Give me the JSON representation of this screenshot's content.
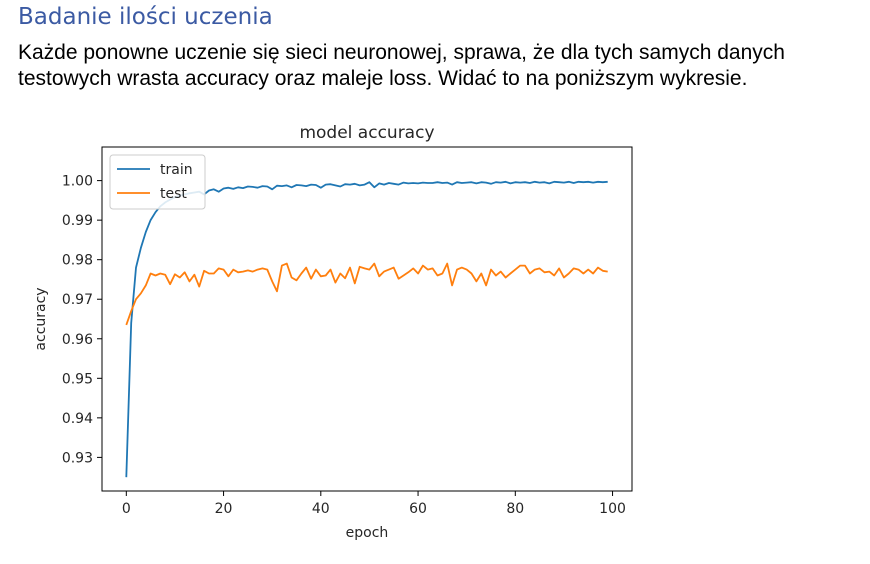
{
  "heading": "Badanie ilości uczenia",
  "paragraph": {
    "line1": "Każde ponowne uczenie się sieci neuronowej, sprawa, że dla tych samych danych",
    "line2": "testowych wrasta accuracy oraz maleje loss. Widać to na poniższym wykresie."
  },
  "chart_data": {
    "type": "line",
    "title": "model accuracy",
    "xlabel": "epoch",
    "ylabel": "accuracy",
    "xlim": [
      -5,
      104
    ],
    "ylim": [
      0.9215,
      1.0085
    ],
    "xticks": [
      0,
      20,
      40,
      60,
      80,
      100
    ],
    "xtick_labels": [
      "0",
      "20",
      "40",
      "60",
      "80",
      "100"
    ],
    "yticks": [
      0.93,
      0.94,
      0.95,
      0.96,
      0.97,
      0.98,
      0.99,
      1.0
    ],
    "ytick_labels": [
      "0.93",
      "0.94",
      "0.95",
      "0.96",
      "0.97",
      "0.98",
      "0.99",
      "1.00"
    ],
    "legend_position": "top-left",
    "grid": false,
    "series": [
      {
        "name": "train",
        "color": "#1f77b4",
        "x": [
          0,
          1,
          2,
          3,
          4,
          5,
          6,
          7,
          8,
          9,
          10,
          11,
          12,
          13,
          14,
          15,
          16,
          17,
          18,
          19,
          20,
          21,
          22,
          23,
          24,
          25,
          26,
          27,
          28,
          29,
          30,
          31,
          32,
          33,
          34,
          35,
          36,
          37,
          38,
          39,
          40,
          41,
          42,
          43,
          44,
          45,
          46,
          47,
          48,
          49,
          50,
          51,
          52,
          53,
          54,
          55,
          56,
          57,
          58,
          59,
          60,
          61,
          62,
          63,
          64,
          65,
          66,
          67,
          68,
          69,
          70,
          71,
          72,
          73,
          74,
          75,
          76,
          77,
          78,
          79,
          80,
          81,
          82,
          83,
          84,
          85,
          86,
          87,
          88,
          89,
          90,
          91,
          92,
          93,
          94,
          95,
          96,
          97,
          98,
          99
        ],
        "values": [
          0.925,
          0.964,
          0.978,
          0.983,
          0.987,
          0.99,
          0.992,
          0.9935,
          0.9945,
          0.9952,
          0.9958,
          0.9962,
          0.9965,
          0.9968,
          0.997,
          0.9972,
          0.9965,
          0.9975,
          0.9978,
          0.9972,
          0.998,
          0.9982,
          0.9979,
          0.9983,
          0.9981,
          0.9985,
          0.9984,
          0.9982,
          0.9986,
          0.9985,
          0.9978,
          0.9987,
          0.9986,
          0.9988,
          0.9983,
          0.9989,
          0.9988,
          0.9986,
          0.999,
          0.9989,
          0.9982,
          0.999,
          0.9991,
          0.9988,
          0.9985,
          0.9991,
          0.999,
          0.9992,
          0.9988,
          0.999,
          0.9996,
          0.9983,
          0.9993,
          0.999,
          0.9994,
          0.9992,
          0.999,
          0.9995,
          0.9993,
          0.9994,
          0.9993,
          0.9995,
          0.9994,
          0.9994,
          0.9996,
          0.9994,
          0.9995,
          0.999,
          0.9996,
          0.9994,
          0.9995,
          0.9996,
          0.9993,
          0.9996,
          0.9995,
          0.9992,
          0.9996,
          0.9995,
          0.9997,
          0.9993,
          0.9996,
          0.9995,
          0.9996,
          0.9994,
          0.9997,
          0.9995,
          0.9996,
          0.9993,
          0.9997,
          0.9996,
          0.9995,
          0.9997,
          0.9994,
          0.9997,
          0.9996,
          0.9997,
          0.9995,
          0.9997,
          0.9996,
          0.9997
        ]
      },
      {
        "name": "test",
        "color": "#ff7f0e",
        "x": [
          0,
          1,
          2,
          3,
          4,
          5,
          6,
          7,
          8,
          9,
          10,
          11,
          12,
          13,
          14,
          15,
          16,
          17,
          18,
          19,
          20,
          21,
          22,
          23,
          24,
          25,
          26,
          27,
          28,
          29,
          30,
          31,
          32,
          33,
          34,
          35,
          36,
          37,
          38,
          39,
          40,
          41,
          42,
          43,
          44,
          45,
          46,
          47,
          48,
          49,
          50,
          51,
          52,
          53,
          54,
          55,
          56,
          57,
          58,
          59,
          60,
          61,
          62,
          63,
          64,
          65,
          66,
          67,
          68,
          69,
          70,
          71,
          72,
          73,
          74,
          75,
          76,
          77,
          78,
          79,
          80,
          81,
          82,
          83,
          84,
          85,
          86,
          87,
          88,
          89,
          90,
          91,
          92,
          93,
          94,
          95,
          96,
          97,
          98,
          99
        ],
        "values": [
          0.9635,
          0.967,
          0.97,
          0.9715,
          0.9735,
          0.9765,
          0.976,
          0.9765,
          0.9762,
          0.9738,
          0.9763,
          0.9755,
          0.9768,
          0.9745,
          0.9762,
          0.9732,
          0.9772,
          0.9765,
          0.9765,
          0.9778,
          0.9775,
          0.9758,
          0.9775,
          0.9768,
          0.977,
          0.9773,
          0.977,
          0.9775,
          0.9778,
          0.9775,
          0.9745,
          0.972,
          0.9785,
          0.979,
          0.9755,
          0.9748,
          0.9765,
          0.978,
          0.9752,
          0.9775,
          0.9758,
          0.976,
          0.9775,
          0.9742,
          0.9765,
          0.9753,
          0.978,
          0.974,
          0.9782,
          0.9778,
          0.9775,
          0.979,
          0.9758,
          0.977,
          0.9775,
          0.978,
          0.9752,
          0.976,
          0.9768,
          0.9778,
          0.9765,
          0.9785,
          0.9775,
          0.9778,
          0.976,
          0.9765,
          0.979,
          0.9735,
          0.9775,
          0.978,
          0.9775,
          0.9765,
          0.9745,
          0.9765,
          0.9735,
          0.9775,
          0.976,
          0.977,
          0.9755,
          0.9765,
          0.9775,
          0.9785,
          0.9785,
          0.9765,
          0.9775,
          0.9778,
          0.9768,
          0.977,
          0.976,
          0.9778,
          0.9755,
          0.9765,
          0.9778,
          0.9775,
          0.9765,
          0.9775,
          0.9765,
          0.978,
          0.9772,
          0.977
        ]
      }
    ]
  }
}
